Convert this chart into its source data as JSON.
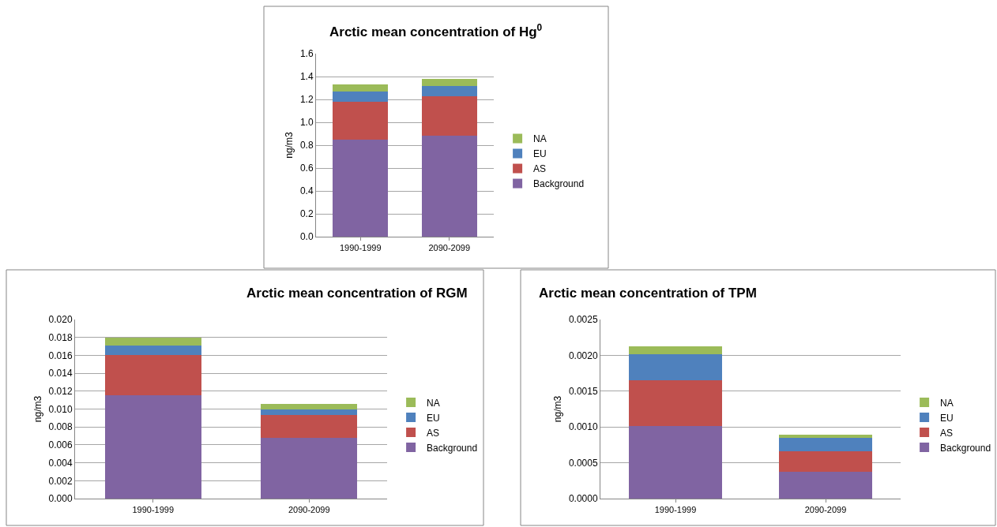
{
  "chart_data": [
    {
      "type": "bar",
      "stacked": true,
      "title": "Arctic mean concentration of Hg$^{0}$",
      "ylabel": "ng/m3",
      "categories": [
        "1990-1999",
        "2090-2099"
      ],
      "grid": "y",
      "legend": "right",
      "series": [
        {
          "name": "Background",
          "color": "#8064a2",
          "values": [
            0.85,
            0.88
          ]
        },
        {
          "name": "AS",
          "color": "#c0504d",
          "values": [
            0.33,
            0.35
          ]
        },
        {
          "name": "EU",
          "color": "#4f81bd",
          "values": [
            0.09,
            0.09
          ]
        },
        {
          "name": "NA",
          "color": "#9bbb59",
          "values": [
            0.06,
            0.06
          ]
        }
      ],
      "ylim": [
        0,
        1.6
      ],
      "yticks": [
        {
          "value": 0,
          "label": "0.0"
        },
        {
          "value": 0.2,
          "label": "0.2"
        },
        {
          "value": 0.4,
          "label": "0.4"
        },
        {
          "value": 0.6,
          "label": "0.6"
        },
        {
          "value": 0.8,
          "label": "0.8"
        },
        {
          "value": 1.0,
          "label": "1.0"
        },
        {
          "value": 1.2,
          "label": "1.2"
        },
        {
          "value": 1.4,
          "label": "1.4"
        },
        {
          "value": 1.6,
          "label": "1.6"
        }
      ]
    },
    {
      "type": "bar",
      "stacked": true,
      "title": "Arctic mean concentration of RGM",
      "ylabel": "ng/m3",
      "categories": [
        "1990-1999",
        "2090-2099"
      ],
      "grid": "y",
      "legend": "right",
      "series": [
        {
          "name": "Background",
          "color": "#8064a2",
          "values": [
            0.0115,
            0.0068
          ]
        },
        {
          "name": "AS",
          "color": "#c0504d",
          "values": [
            0.0045,
            0.0025
          ]
        },
        {
          "name": "EU",
          "color": "#4f81bd",
          "values": [
            0.0011,
            0.0007
          ]
        },
        {
          "name": "NA",
          "color": "#9bbb59",
          "values": [
            0.0009,
            0.0006
          ]
        }
      ],
      "ylim": [
        0,
        0.02
      ],
      "yticks": [
        {
          "value": 0,
          "label": "0.000"
        },
        {
          "value": 0.002,
          "label": "0.002"
        },
        {
          "value": 0.004,
          "label": "0.004"
        },
        {
          "value": 0.006,
          "label": "0.006"
        },
        {
          "value": 0.008,
          "label": "0.008"
        },
        {
          "value": 0.01,
          "label": "0.010"
        },
        {
          "value": 0.012,
          "label": "0.012"
        },
        {
          "value": 0.014,
          "label": "0.014"
        },
        {
          "value": 0.016,
          "label": "0.016"
        },
        {
          "value": 0.018,
          "label": "0.018"
        },
        {
          "value": 0.02,
          "label": "0.020"
        }
      ]
    },
    {
      "type": "bar",
      "stacked": true,
      "title": "Arctic mean concentration of TPM",
      "ylabel": "ng/m3",
      "categories": [
        "1990-1999",
        "2090-2099"
      ],
      "grid": "y",
      "legend": "right",
      "series": [
        {
          "name": "Background",
          "color": "#8064a2",
          "values": [
            0.00101,
            0.00037
          ]
        },
        {
          "name": "AS",
          "color": "#c0504d",
          "values": [
            0.00064,
            0.00029
          ]
        },
        {
          "name": "EU",
          "color": "#4f81bd",
          "values": [
            0.00036,
            0.00019
          ]
        },
        {
          "name": "NA",
          "color": "#9bbb59",
          "values": [
            0.00012,
            4e-05
          ]
        }
      ],
      "ylim": [
        0,
        0.0025
      ],
      "yticks": [
        {
          "value": 0,
          "label": "0.0000"
        },
        {
          "value": 0.0005,
          "label": "0.0005"
        },
        {
          "value": 0.001,
          "label": "0.0010"
        },
        {
          "value": 0.0015,
          "label": "0.0015"
        },
        {
          "value": 0.002,
          "label": "0.0020"
        },
        {
          "value": 0.0025,
          "label": "0.0025"
        }
      ]
    }
  ]
}
